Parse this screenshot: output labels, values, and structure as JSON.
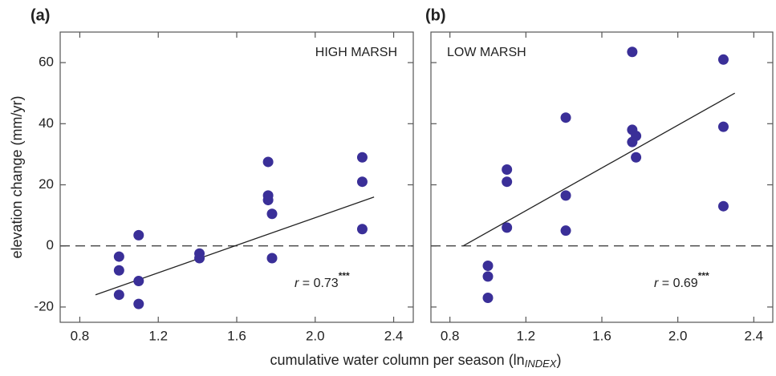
{
  "chart_data": [
    {
      "type": "scatter",
      "panel_label": "(a)",
      "annotation": "HIGH MARSH",
      "annotation_align": "right",
      "stat": {
        "symbol": "r",
        "text": " = 0.73",
        "sup": "***"
      },
      "ylabel": "elevation change (mm/yr)",
      "xlabel": {
        "main": "cumulative water column per season (ln",
        "sub": "INDEX",
        "end": ")"
      },
      "x": [
        1.0,
        1.0,
        1.0,
        1.1,
        1.1,
        1.1,
        1.41,
        1.41,
        1.76,
        1.76,
        1.76,
        1.78,
        1.78,
        2.24,
        2.24,
        2.24
      ],
      "values": [
        -3.5,
        -8,
        -16,
        3.5,
        -11.5,
        -19,
        -2.5,
        -4,
        27.5,
        16.5,
        15,
        10.5,
        -4,
        29,
        21,
        5.5
      ],
      "color": "#3a2f98",
      "fit": {
        "x": [
          0.88,
          2.3
        ],
        "y": [
          -16,
          16
        ]
      },
      "hline": 0,
      "xlim": [
        0.7,
        2.5
      ],
      "xticks": [
        0.8,
        1.2,
        1.6,
        {
          "value": 2,
          "label": "2.0"
        },
        2.4
      ],
      "ylim": [
        -25,
        70
      ],
      "yticks": [
        -20,
        0,
        20,
        40,
        60
      ],
      "ytick_labels": true
    },
    {
      "type": "scatter",
      "panel_label": "(b)",
      "annotation": "LOW  MARSH",
      "annotation_align": "left",
      "stat": {
        "symbol": "r",
        "text": " = 0.69",
        "sup": "***"
      },
      "x": [
        1.0,
        1.0,
        1.0,
        1.1,
        1.1,
        1.1,
        1.41,
        1.41,
        1.41,
        1.76,
        1.76,
        1.76,
        1.78,
        1.78,
        2.24,
        2.24,
        2.24
      ],
      "values": [
        -6.5,
        -10,
        -17,
        25,
        21,
        6,
        42,
        16.5,
        5,
        63.5,
        38,
        34,
        36,
        29,
        61,
        39,
        13
      ],
      "color": "#3a2f98",
      "fit": {
        "x": [
          0.87,
          2.3
        ],
        "y": [
          0,
          50
        ]
      },
      "hline": 0,
      "xlim": [
        0.7,
        2.5
      ],
      "xticks": [
        0.8,
        1.2,
        1.6,
        {
          "value": 2,
          "label": "2.0"
        },
        2.4
      ],
      "ylim": [
        -25,
        70
      ],
      "yticks": [
        -20,
        0,
        20,
        40,
        60
      ],
      "ytick_labels": false
    }
  ]
}
